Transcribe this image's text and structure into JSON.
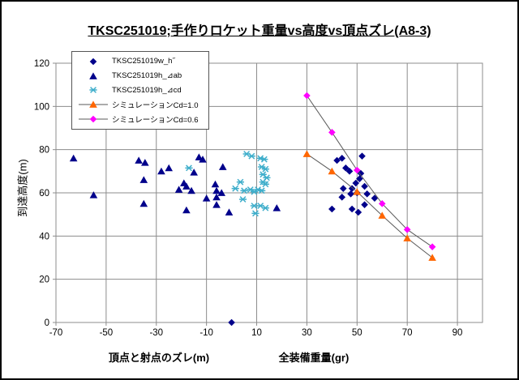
{
  "title": "TKSC251019;手作りロケット重量vs高度vs頂点ズレ(A8-3)",
  "colors": {
    "navy": "#00008B",
    "cyan": "#3FAECB",
    "orange": "#FF6600",
    "magenta": "#FF00FF",
    "sim_line": "#595959",
    "grid": "#8C8C8C",
    "text": "#000000"
  },
  "chart_data": {
    "type": "scatter",
    "title": "TKSC251019;手作りロケット重量vs高度vs頂点ズレ(A8-3)",
    "y_label": "到達高度(m)",
    "x_label_left": "頂点と射点のズレ(m)",
    "x_label_right": "全装備重量(gr)",
    "x_range": [
      -70,
      100
    ],
    "y_range": [
      0,
      120
    ],
    "x_ticks": [
      -70,
      -50,
      -30,
      -10,
      10,
      30,
      50,
      70,
      90
    ],
    "y_ticks": [
      0,
      20,
      40,
      60,
      80,
      100,
      120
    ],
    "grid": true,
    "legend_position": "top-left",
    "series": [
      {
        "name": "TKSC251019w_h˝",
        "marker": "diamond",
        "color": "#00008B",
        "line": false,
        "points": [
          [
            0,
            0
          ],
          [
            42,
            75
          ],
          [
            44,
            76
          ],
          [
            52,
            77
          ],
          [
            45.5,
            71.5
          ],
          [
            47,
            70
          ],
          [
            51.5,
            69
          ],
          [
            51,
            66.5
          ],
          [
            49.5,
            64.5
          ],
          [
            53,
            63
          ],
          [
            48,
            62
          ],
          [
            44.5,
            62
          ],
          [
            50,
            60
          ],
          [
            47.5,
            59.5
          ],
          [
            44,
            58
          ],
          [
            54,
            59.5
          ],
          [
            57,
            57.5
          ],
          [
            53,
            54.5
          ],
          [
            40,
            52.5
          ],
          [
            48,
            52.5
          ],
          [
            50.5,
            51
          ]
        ]
      },
      {
        "name": "TKSC251019h_⊿ab",
        "marker": "triangle",
        "color": "#00008B",
        "line": false,
        "points": [
          [
            -63,
            76
          ],
          [
            -55,
            59
          ],
          [
            -37,
            75
          ],
          [
            -34.5,
            74
          ],
          [
            -35,
            66
          ],
          [
            -35,
            55
          ],
          [
            -28,
            70
          ],
          [
            -25,
            71.5
          ],
          [
            -21,
            61.5
          ],
          [
            -19,
            64.5
          ],
          [
            -18,
            63
          ],
          [
            -16,
            61
          ],
          [
            -15,
            69.5
          ],
          [
            -13,
            76.5
          ],
          [
            -11.5,
            75.5
          ],
          [
            -18,
            52
          ],
          [
            -10,
            57.5
          ],
          [
            -6.5,
            64
          ],
          [
            -6,
            61
          ],
          [
            -6,
            58
          ],
          [
            -3.5,
            72
          ],
          [
            -6,
            54.5
          ],
          [
            -4,
            60
          ],
          [
            -1,
            51
          ],
          [
            18,
            53
          ]
        ]
      },
      {
        "name": "TKSC251019h_⊿cd",
        "marker": "asterisk",
        "color": "#3FAECB",
        "line": false,
        "points": [
          [
            -17,
            71.5
          ],
          [
            6,
            78
          ],
          [
            8,
            77
          ],
          [
            11.5,
            76
          ],
          [
            13,
            75.5
          ],
          [
            12,
            72
          ],
          [
            13.5,
            71
          ],
          [
            12.5,
            68.5
          ],
          [
            14,
            67
          ],
          [
            12.5,
            65
          ],
          [
            13.5,
            64
          ],
          [
            3.5,
            65
          ],
          [
            1.5,
            62
          ],
          [
            5,
            61
          ],
          [
            7.5,
            61.5
          ],
          [
            9,
            60.5
          ],
          [
            10.5,
            61.5
          ],
          [
            12,
            61
          ],
          [
            4.5,
            57
          ],
          [
            9,
            54
          ],
          [
            11.5,
            54
          ],
          [
            13.5,
            53
          ],
          [
            9.5,
            50.5
          ]
        ]
      },
      {
        "name": "シミュレーションCd=1.0",
        "marker": "triangle",
        "color": "#FF6600",
        "line": true,
        "points": [
          [
            30,
            78
          ],
          [
            40,
            70
          ],
          [
            50,
            60.5
          ],
          [
            60,
            49.5
          ],
          [
            70,
            39
          ],
          [
            80,
            30
          ]
        ]
      },
      {
        "name": "シミュレーションCd=0.6",
        "marker": "diamond",
        "color": "#FF00FF",
        "line": true,
        "points": [
          [
            30,
            105
          ],
          [
            40,
            88
          ],
          [
            50,
            70.5
          ],
          [
            60,
            55
          ],
          [
            70,
            43
          ],
          [
            80,
            35
          ]
        ]
      }
    ]
  }
}
